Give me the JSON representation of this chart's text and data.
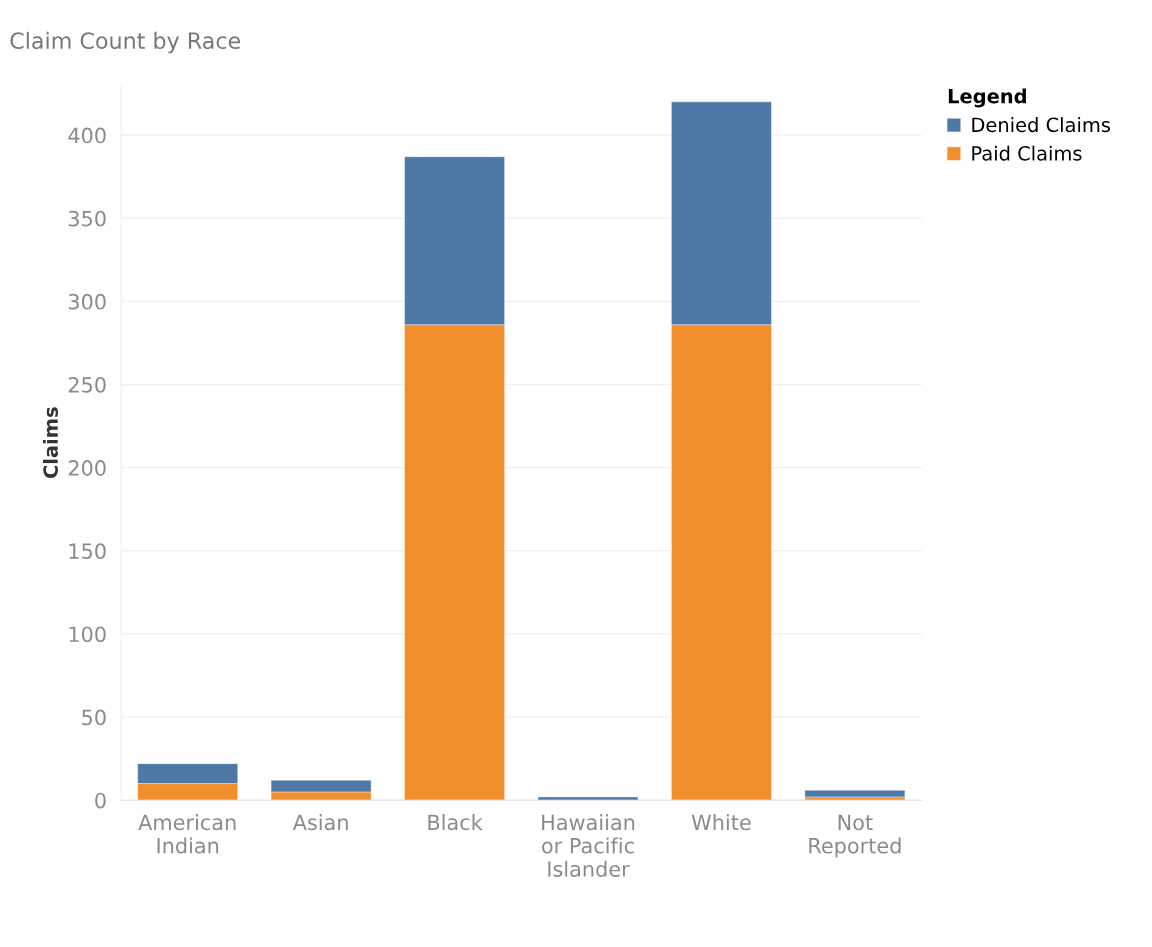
{
  "chart_data": {
    "type": "bar",
    "title": "Claim Count by Race",
    "ylabel": "Claims",
    "legend_title": "Legend",
    "categories": [
      "American\nIndian",
      "Asian",
      "Black",
      "Hawaiian\nor Pacific\nIslander",
      "White",
      "Not\nReported"
    ],
    "stacked": true,
    "series": [
      {
        "name": "Paid Claims",
        "color": "#f28e2b",
        "values": [
          10,
          5,
          286,
          0,
          286,
          2
        ]
      },
      {
        "name": "Denied Claims",
        "color": "#4e79a7",
        "values": [
          12,
          7,
          101,
          2,
          134,
          4
        ]
      }
    ],
    "ylim": [
      0,
      430
    ],
    "yticks": [
      0,
      50,
      100,
      150,
      200,
      250,
      300,
      350,
      400
    ],
    "grid": "y",
    "legend": "top right"
  }
}
